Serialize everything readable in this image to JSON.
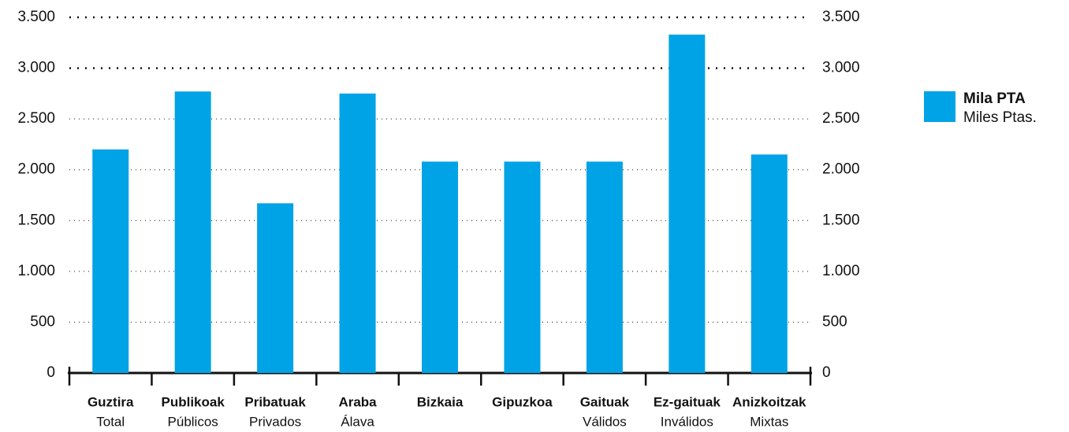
{
  "chart_data": {
    "type": "bar",
    "categories": [
      "Guztira",
      "Publikoak",
      "Pribatuak",
      "Araba",
      "Bizkaia",
      "Gipuzkoa",
      "Gaituak",
      "Ez-gaituak",
      "Anizkoitzak"
    ],
    "category_translations": [
      "Total",
      "Públicos",
      "Privados",
      "Álava",
      null,
      null,
      "Válidos",
      "Inválidos",
      "Mixtas"
    ],
    "series": [
      {
        "name": "Mila PTA",
        "name_translation": "Miles Ptas.",
        "color": "#00a3e6",
        "values": [
          2200,
          2770,
          1670,
          2750,
          2080,
          2080,
          2080,
          3330,
          2150
        ]
      }
    ],
    "ylim": [
      0,
      3500
    ],
    "yticks": [
      0,
      500,
      {
        "value": 1000,
        "label": "1.000"
      },
      {
        "value": 1500,
        "label": "1.500"
      },
      {
        "value": 2000,
        "label": "2.000"
      },
      {
        "value": 2500,
        "label": "2.500"
      },
      {
        "value": 3000,
        "label": "3.000"
      },
      {
        "value": 3500,
        "label": "3.500"
      }
    ],
    "y2lim": [
      0,
      3500
    ],
    "y2ticks": [
      0,
      500,
      {
        "value": 1000,
        "label": "1.000"
      },
      {
        "value": 1500,
        "label": "1.500"
      },
      {
        "value": 2000,
        "label": "2.000"
      },
      {
        "value": 2500,
        "label": "2.500"
      },
      {
        "value": 3000,
        "label": "3.000"
      },
      {
        "value": 3500,
        "label": "3.500"
      }
    ],
    "grid": true,
    "legend": "right"
  }
}
